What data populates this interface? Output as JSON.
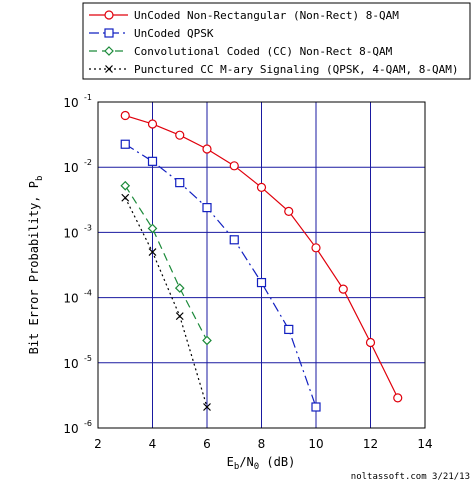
{
  "chart_data": {
    "type": "line",
    "xlabel": {
      "main": "E",
      "sub_b": "b",
      "slash": "/N",
      "sub_0": "0",
      "unit": " (dB)"
    },
    "ylabel": "Bit Error Probability, P",
    "ylabel_sub": "b",
    "credit": "noltassoft.com 3/21/13",
    "xlim": [
      2,
      14
    ],
    "ylim": [
      1e-06,
      0.1
    ],
    "y_scale": "log",
    "grid": true,
    "legend_placement": "top",
    "x_ticks": [
      "2",
      "4",
      "6",
      "8",
      "10",
      "12",
      "14"
    ],
    "y_ticks": [
      {
        "base": "10",
        "exp": "-1",
        "value": 0.1
      },
      {
        "base": "10",
        "exp": "-2",
        "value": 0.01
      },
      {
        "base": "10",
        "exp": "-3",
        "value": 0.001
      },
      {
        "base": "10",
        "exp": "-4",
        "value": 0.0001
      },
      {
        "base": "10",
        "exp": "-5",
        "value": 1e-05
      },
      {
        "base": "10",
        "exp": "-6",
        "value": 1e-06
      }
    ],
    "colors": {
      "grid": "#1a1aa0",
      "frame": "#000000"
    },
    "series": [
      {
        "name": "UnCoded Non-Rectangular (Non-Rect) 8-QAM",
        "color": "#e0000c",
        "marker": "circle",
        "line": "solid",
        "x": [
          3,
          4,
          5,
          6,
          7,
          8,
          9,
          10,
          11,
          12,
          13
        ],
        "y": [
          0.062,
          0.046,
          0.031,
          0.019,
          0.0105,
          0.0049,
          0.0021,
          0.00058,
          0.000135,
          2.05e-05,
          2.9e-06
        ]
      },
      {
        "name": "UnCoded QPSK",
        "color": "#1220c0",
        "marker": "square",
        "line": "dashdot",
        "x": [
          3,
          4,
          5,
          6,
          7,
          8,
          9,
          10
        ],
        "y": [
          0.0225,
          0.0123,
          0.0058,
          0.0024,
          0.00077,
          0.00017,
          3.25e-05,
          2.1e-06
        ]
      },
      {
        "name": "Convolutional Coded (CC) Non-Rect 8-QAM",
        "color": "#1c8a3a",
        "marker": "diamond",
        "line": "dashed",
        "x": [
          3,
          4,
          5,
          6
        ],
        "y": [
          0.0052,
          0.00115,
          0.00014,
          2.2e-05
        ]
      },
      {
        "name": "Punctured CC M-ary Signaling (QPSK, 4-QAM, 8-QAM)",
        "color": "#000000",
        "marker": "x",
        "line": "dotted",
        "x": [
          3,
          4,
          5,
          6
        ],
        "y": [
          0.0034,
          0.0005,
          5.2e-05,
          2.1e-06
        ]
      }
    ]
  }
}
